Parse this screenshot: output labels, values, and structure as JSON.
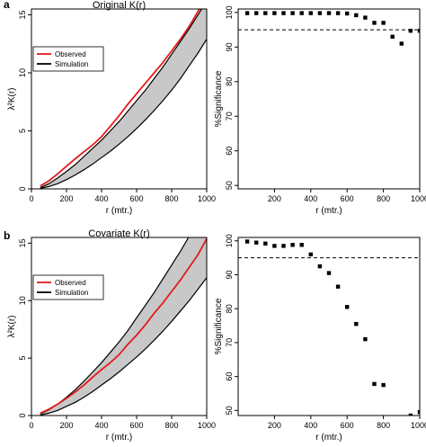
{
  "chart_data": [
    {
      "panel": "a",
      "type": "line",
      "title": "Original K(r)",
      "xlabel": "r (mtr.)",
      "ylabel": "λ²K(r)",
      "xlim": [
        0,
        1000
      ],
      "ylim": [
        0,
        15.5
      ],
      "xticks": [
        0,
        200,
        400,
        600,
        800,
        1000
      ],
      "yticks": [
        0,
        5,
        10,
        15
      ],
      "legend": {
        "placement": "top-left",
        "entries": [
          {
            "label": "Observed",
            "color": "#e41a1c"
          },
          {
            "label": "Simulation",
            "color": "#000000"
          }
        ]
      },
      "x": [
        50,
        100,
        150,
        200,
        250,
        300,
        350,
        400,
        450,
        500,
        550,
        600,
        650,
        700,
        750,
        800,
        850,
        900,
        950,
        1000
      ],
      "series": [
        {
          "name": "Observed",
          "color": "#e41a1c",
          "values": [
            0.25,
            0.7,
            1.3,
            1.95,
            2.6,
            3.2,
            3.8,
            4.5,
            5.4,
            6.3,
            7.3,
            8.2,
            9.1,
            10.0,
            10.9,
            11.9,
            12.9,
            14.0,
            15.3,
            16.4
          ]
        },
        {
          "name": "Simulation upper",
          "color": "#000000",
          "values": [
            0.1,
            0.45,
            0.95,
            1.5,
            2.1,
            2.8,
            3.5,
            4.2,
            5.0,
            5.8,
            6.7,
            7.6,
            8.5,
            9.5,
            10.5,
            11.6,
            12.7,
            13.8,
            15.0,
            16.2
          ]
        },
        {
          "name": "Simulation lower",
          "color": "#000000",
          "values": [
            0.05,
            0.2,
            0.45,
            0.8,
            1.2,
            1.65,
            2.15,
            2.7,
            3.25,
            3.85,
            4.5,
            5.2,
            5.95,
            6.75,
            7.6,
            8.5,
            9.5,
            10.6,
            11.7,
            12.9
          ]
        }
      ],
      "band_fill": "#c8c8c8"
    },
    {
      "panel": "a",
      "type": "scatter",
      "title": "",
      "xlabel": "r (mtr.)",
      "ylabel": "%Significance",
      "xlim": [
        0,
        1000
      ],
      "ylim": [
        49,
        101
      ],
      "xticks": [
        200,
        400,
        600,
        800,
        1000
      ],
      "yticks": [
        50,
        60,
        70,
        80,
        90,
        100
      ],
      "hline": 95,
      "x": [
        50,
        100,
        150,
        200,
        250,
        300,
        350,
        400,
        450,
        500,
        550,
        600,
        650,
        700,
        750,
        800,
        850,
        900,
        950,
        1000
      ],
      "values": [
        99.8,
        99.8,
        99.8,
        99.8,
        99.8,
        99.8,
        99.8,
        99.8,
        99.8,
        99.8,
        99.8,
        99.7,
        99.2,
        98.5,
        97.0,
        97.0,
        93.0,
        91.0,
        94.7,
        94.7
      ]
    },
    {
      "panel": "b",
      "type": "line",
      "title": "Covariate K(r)",
      "xlabel": "r (mtr.)",
      "ylabel": "λ²K(r)",
      "xlim": [
        0,
        1000
      ],
      "ylim": [
        0,
        15.5
      ],
      "xticks": [
        0,
        200,
        400,
        600,
        800,
        1000
      ],
      "yticks": [
        0,
        5,
        10,
        15
      ],
      "legend": {
        "placement": "top-left",
        "entries": [
          {
            "label": "Observed",
            "color": "#e41a1c"
          },
          {
            "label": "Simulation",
            "color": "#000000"
          }
        ]
      },
      "x": [
        50,
        100,
        150,
        200,
        250,
        300,
        350,
        400,
        450,
        500,
        550,
        600,
        650,
        700,
        750,
        800,
        850,
        900,
        950,
        1000
      ],
      "series": [
        {
          "name": "Observed",
          "color": "#e41a1c",
          "values": [
            0.2,
            0.55,
            1.0,
            1.5,
            2.05,
            2.65,
            3.35,
            4.0,
            4.6,
            5.3,
            6.2,
            7.0,
            7.9,
            8.9,
            9.8,
            10.8,
            11.8,
            12.9,
            14.0,
            15.4
          ]
        },
        {
          "name": "Simulation upper",
          "color": "#000000",
          "values": [
            0.15,
            0.5,
            1.0,
            1.6,
            2.25,
            3.0,
            3.8,
            4.6,
            5.5,
            6.4,
            7.4,
            8.5,
            9.6,
            10.7,
            11.9,
            13.1,
            14.3,
            15.6,
            16.9,
            18.3
          ]
        },
        {
          "name": "Simulation lower",
          "color": "#000000",
          "values": [
            0.05,
            0.2,
            0.45,
            0.8,
            1.15,
            1.6,
            2.1,
            2.65,
            3.2,
            3.8,
            4.45,
            5.1,
            5.8,
            6.55,
            7.35,
            8.2,
            9.1,
            10.0,
            11.0,
            12.0
          ]
        }
      ],
      "band_fill": "#c8c8c8"
    },
    {
      "panel": "b",
      "type": "scatter",
      "title": "",
      "xlabel": "r (mtr.)",
      "ylabel": "%Significance",
      "xlim": [
        0,
        1000
      ],
      "ylim": [
        48.5,
        101
      ],
      "xticks": [
        200,
        400,
        600,
        800,
        1000
      ],
      "yticks": [
        50,
        60,
        70,
        80,
        90,
        100
      ],
      "hline": 95,
      "x": [
        50,
        100,
        150,
        200,
        250,
        300,
        350,
        400,
        450,
        500,
        550,
        600,
        650,
        700,
        750,
        800,
        950,
        1000
      ],
      "values": [
        99.8,
        99.5,
        99.2,
        98.5,
        98.5,
        98.8,
        98.8,
        96.0,
        92.5,
        90.5,
        86.5,
        80.5,
        75.5,
        71.0,
        57.8,
        57.5,
        48.5,
        49.5
      ]
    }
  ]
}
